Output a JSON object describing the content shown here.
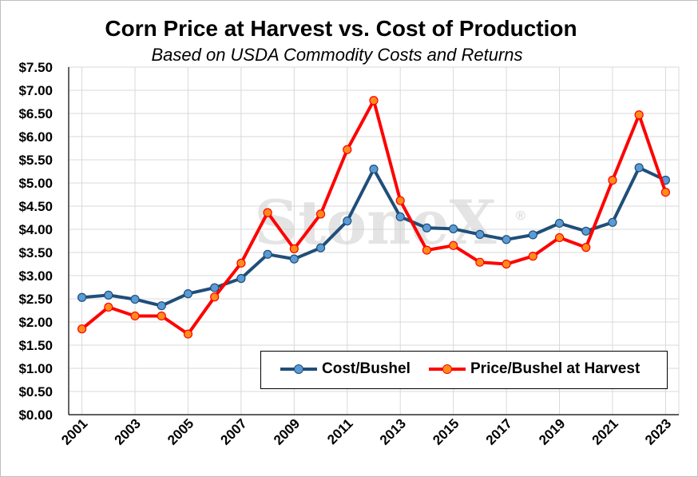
{
  "chart_data": {
    "type": "line",
    "title": "Corn Price at Harvest vs. Cost of Production",
    "subtitle": "Based on USDA Commodity Costs and Returns",
    "watermark": "StoneX",
    "watermark_mark": "®",
    "xlabel": "",
    "ylabel": "",
    "ylim": [
      0,
      7.5
    ],
    "y_ticks": [
      "$0.00",
      "$0.50",
      "$1.00",
      "$1.50",
      "$2.00",
      "$2.50",
      "$3.00",
      "$3.50",
      "$4.00",
      "$4.50",
      "$5.00",
      "$5.50",
      "$6.00",
      "$6.50",
      "$7.00",
      "$7.50"
    ],
    "x_tick_labels": [
      "2001",
      "2003",
      "2005",
      "2007",
      "2009",
      "2011",
      "2013",
      "2015",
      "2017",
      "2019",
      "2021",
      "2023"
    ],
    "x": [
      2001,
      2002,
      2003,
      2004,
      2005,
      2006,
      2007,
      2008,
      2009,
      2010,
      2011,
      2012,
      2013,
      2014,
      2015,
      2016,
      2017,
      2018,
      2019,
      2020,
      2021,
      2022,
      2023
    ],
    "grid": true,
    "legend_placement": "bottom-right",
    "series": [
      {
        "name": "Cost/Bushel",
        "color": "#1f4e79",
        "marker_fill": "#5b9bd5",
        "values": [
          2.53,
          2.58,
          2.49,
          2.35,
          2.61,
          2.74,
          2.94,
          3.46,
          3.36,
          3.6,
          4.18,
          5.3,
          4.27,
          4.03,
          4.01,
          3.89,
          3.78,
          3.88,
          4.13,
          3.96,
          4.15,
          5.33,
          5.06
        ]
      },
      {
        "name": "Price/Bushel at Harvest",
        "color": "#ff0000",
        "marker_fill": "#ff8c1a",
        "values": [
          1.85,
          2.32,
          2.13,
          2.13,
          1.74,
          2.54,
          3.27,
          4.36,
          3.58,
          4.33,
          5.72,
          6.78,
          4.62,
          3.55,
          3.65,
          3.29,
          3.25,
          3.42,
          3.82,
          3.61,
          5.06,
          6.47,
          4.8
        ]
      }
    ]
  }
}
